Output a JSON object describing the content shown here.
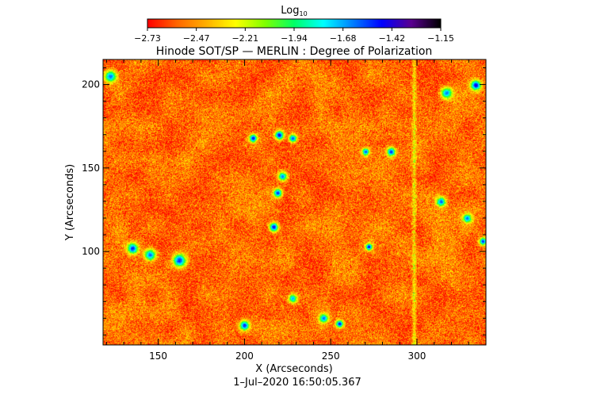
{
  "chart_data": {
    "type": "heatmap",
    "title": "Hinode SOT/SP — MERLIN : Degree of Polarization",
    "xlabel": "X (Arcseconds)",
    "ylabel": "Y (Arcseconds)",
    "timestamp": "1–Jul–2020 16:50:05.367",
    "xlim": [
      118,
      340
    ],
    "ylim": [
      44,
      215
    ],
    "x_ticks": [
      150,
      200,
      250,
      300
    ],
    "y_ticks": [
      100,
      150,
      200
    ],
    "grid": false,
    "colorbar": {
      "label_base": "Log",
      "label_sub": "10",
      "position": "top",
      "range": [
        -2.73,
        -1.15
      ],
      "ticks": [
        "−2.73",
        "−2.47",
        "−2.21",
        "−1.94",
        "−1.68",
        "−1.42",
        "−1.15"
      ],
      "colormap": [
        "#ff0000",
        "#ff6600",
        "#ffb000",
        "#ffff00",
        "#80ff00",
        "#00ff66",
        "#00ffff",
        "#0080ff",
        "#0000ff",
        "#5a0090",
        "#000000"
      ]
    },
    "field_description": {
      "background_level": -2.55,
      "vertical_streak_x": 298,
      "strong_features": [
        {
          "x": 220,
          "y": 170,
          "value": -1.42
        },
        {
          "x": 228,
          "y": 168,
          "value": -1.55
        },
        {
          "x": 205,
          "y": 168,
          "value": -1.45
        },
        {
          "x": 222,
          "y": 145,
          "value": -1.6
        },
        {
          "x": 219,
          "y": 135,
          "value": -1.5
        },
        {
          "x": 217,
          "y": 115,
          "value": -1.45
        },
        {
          "x": 272,
          "y": 103,
          "value": -1.42
        },
        {
          "x": 285,
          "y": 160,
          "value": -1.5
        },
        {
          "x": 270,
          "y": 160,
          "value": -1.55
        },
        {
          "x": 255,
          "y": 57,
          "value": -1.45
        },
        {
          "x": 246,
          "y": 60,
          "value": -1.6
        },
        {
          "x": 200,
          "y": 56,
          "value": -1.5
        },
        {
          "x": 334,
          "y": 200,
          "value": -1.42
        },
        {
          "x": 338,
          "y": 106,
          "value": -1.5
        },
        {
          "x": 314,
          "y": 130,
          "value": -1.55
        },
        {
          "x": 122,
          "y": 205,
          "value": -1.6
        },
        {
          "x": 135,
          "y": 102,
          "value": -1.5
        },
        {
          "x": 145,
          "y": 98,
          "value": -1.6
        },
        {
          "x": 162,
          "y": 95,
          "value": -1.5
        },
        {
          "x": 317,
          "y": 195,
          "value": -1.6
        },
        {
          "x": 329,
          "y": 120,
          "value": -1.6
        },
        {
          "x": 228,
          "y": 72,
          "value": -1.7
        }
      ]
    }
  }
}
